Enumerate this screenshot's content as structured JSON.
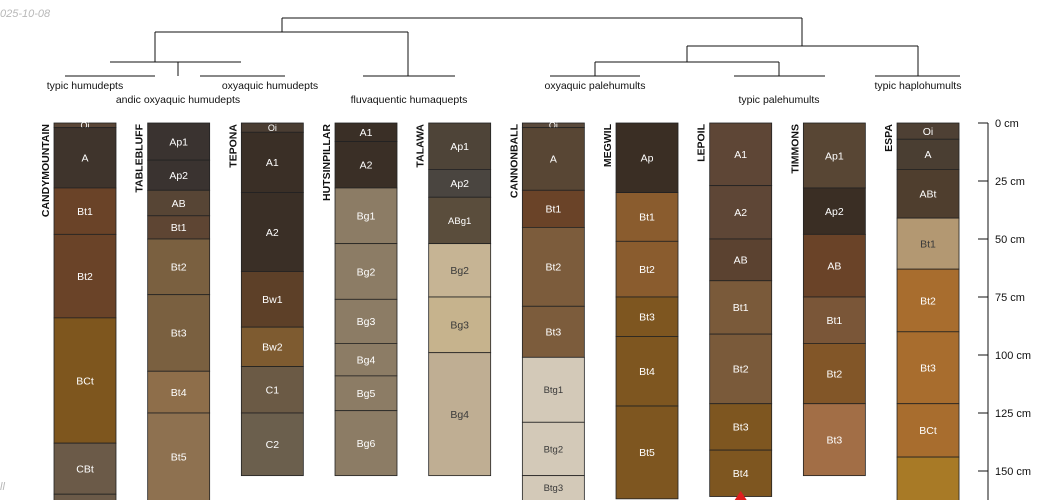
{
  "stamp": "025-10-08",
  "corner_note": "ll",
  "chart_data": {
    "type": "soil-profile-sketch",
    "depth_unit": "cm",
    "depth_ticks": [
      0,
      25,
      50,
      75,
      100,
      125,
      150
    ],
    "depth_tick_labels": [
      "0 cm",
      "25 cm",
      "50 cm",
      "75 cm",
      "100 cm",
      "125 cm",
      "150 cm"
    ],
    "visible_depth_range": [
      0,
      163
    ],
    "taxa": [
      {
        "name": "typic humudepts",
        "profiles": [
          0
        ]
      },
      {
        "name": "andic oxyaquic humudepts",
        "profiles": [
          1
        ]
      },
      {
        "name": "oxyaquic humudepts",
        "profiles": [
          2
        ]
      },
      {
        "name": "fluvaquentic humaquepts",
        "profiles": [
          3,
          4
        ]
      },
      {
        "name": "oxyaquic palehumults",
        "profiles": [
          5,
          6
        ]
      },
      {
        "name": "typic palehumults",
        "profiles": [
          7,
          8
        ]
      },
      {
        "name": "typic haplohumults",
        "profiles": [
          9
        ]
      }
    ],
    "profiles": [
      {
        "name": "CANDYMOUNTAIN",
        "horizons": [
          {
            "name": "Oi",
            "top": 0,
            "bottom": 2,
            "color": "#5a4637"
          },
          {
            "name": "A",
            "top": 2,
            "bottom": 28,
            "color": "#3f342c"
          },
          {
            "name": "Bt1",
            "top": 28,
            "bottom": 48,
            "color": "#6a4328"
          },
          {
            "name": "Bt2",
            "top": 48,
            "bottom": 84,
            "color": "#6a4328"
          },
          {
            "name": "BCt",
            "top": 84,
            "bottom": 138,
            "color": "#7e561e"
          },
          {
            "name": "CBt",
            "top": 138,
            "bottom": 160,
            "color": "#6b5a48"
          },
          {
            "name": "",
            "top": 160,
            "bottom": 175,
            "color": "#6b5a48"
          }
        ]
      },
      {
        "name": "TABLEBLUFF",
        "horizons": [
          {
            "name": "Ap1",
            "top": 0,
            "bottom": 16,
            "color": "#3a3330"
          },
          {
            "name": "Ap2",
            "top": 16,
            "bottom": 29,
            "color": "#3a3330"
          },
          {
            "name": "AB",
            "top": 29,
            "bottom": 40,
            "color": "#574535"
          },
          {
            "name": "Bt1",
            "top": 40,
            "bottom": 50,
            "color": "#5e4533"
          },
          {
            "name": "Bt2",
            "top": 50,
            "bottom": 74,
            "color": "#7a6040"
          },
          {
            "name": "Bt3",
            "top": 74,
            "bottom": 107,
            "color": "#7a6040"
          },
          {
            "name": "Bt4",
            "top": 107,
            "bottom": 125,
            "color": "#8e6e4a"
          },
          {
            "name": "Bt5",
            "top": 125,
            "bottom": 175,
            "color": "#8e7150"
          }
        ]
      },
      {
        "name": "TEPONA",
        "horizons": [
          {
            "name": "Oi",
            "top": 0,
            "bottom": 4,
            "color": "#4a3d32"
          },
          {
            "name": "A1",
            "top": 4,
            "bottom": 30,
            "color": "#3a2f26"
          },
          {
            "name": "A2",
            "top": 30,
            "bottom": 64,
            "color": "#3a2f26"
          },
          {
            "name": "Bw1",
            "top": 64,
            "bottom": 88,
            "color": "#5d4028"
          },
          {
            "name": "Bw2",
            "top": 88,
            "bottom": 105,
            "color": "#7e5b30"
          },
          {
            "name": "C1",
            "top": 105,
            "bottom": 125,
            "color": "#6b5a45"
          },
          {
            "name": "C2",
            "top": 125,
            "bottom": 152,
            "color": "#6b5f4d"
          }
        ]
      },
      {
        "name": "HUTSINPILLAR",
        "horizons": [
          {
            "name": "A1",
            "top": 0,
            "bottom": 8,
            "color": "#3a2f26"
          },
          {
            "name": "A2",
            "top": 8,
            "bottom": 28,
            "color": "#3a2f26"
          },
          {
            "name": "Bg1",
            "top": 28,
            "bottom": 52,
            "color": "#8c7c65"
          },
          {
            "name": "Bg2",
            "top": 52,
            "bottom": 76,
            "color": "#8c7c65"
          },
          {
            "name": "Bg3",
            "top": 76,
            "bottom": 95,
            "color": "#8c7c65"
          },
          {
            "name": "Bg4",
            "top": 95,
            "bottom": 109,
            "color": "#8c7c65"
          },
          {
            "name": "Bg5",
            "top": 109,
            "bottom": 124,
            "color": "#8c7c65"
          },
          {
            "name": "Bg6",
            "top": 124,
            "bottom": 152,
            "color": "#8c7c65"
          }
        ]
      },
      {
        "name": "TALAWA",
        "horizons": [
          {
            "name": "Ap1",
            "top": 0,
            "bottom": 20,
            "color": "#4e4438"
          },
          {
            "name": "Ap2",
            "top": 20,
            "bottom": 32,
            "color": "#4a4540"
          },
          {
            "name": "ABg1",
            "top": 32,
            "bottom": 52,
            "color": "#5a4d3c"
          },
          {
            "name": "Bg2",
            "top": 52,
            "bottom": 75,
            "color": "#c6b494"
          },
          {
            "name": "Bg3",
            "top": 75,
            "bottom": 99,
            "color": "#c6b38d"
          },
          {
            "name": "Bg4",
            "top": 99,
            "bottom": 152,
            "color": "#bfae93"
          }
        ]
      },
      {
        "name": "CANNONBALL",
        "horizons": [
          {
            "name": "Oi",
            "top": 0,
            "bottom": 2,
            "color": "#5a4a3c"
          },
          {
            "name": "A",
            "top": 2,
            "bottom": 29,
            "color": "#584634"
          },
          {
            "name": "Bt1",
            "top": 29,
            "bottom": 45,
            "color": "#6a4328"
          },
          {
            "name": "Bt2",
            "top": 45,
            "bottom": 79,
            "color": "#7c5c3c"
          },
          {
            "name": "Bt3",
            "top": 79,
            "bottom": 101,
            "color": "#7c5c3c"
          },
          {
            "name": "Btg1",
            "top": 101,
            "bottom": 129,
            "color": "#d3c9b8"
          },
          {
            "name": "Btg2",
            "top": 129,
            "bottom": 152,
            "color": "#d3c9b8"
          },
          {
            "name": "Btg3",
            "top": 152,
            "bottom": 175,
            "color": "#d3c9b8"
          }
        ]
      },
      {
        "name": "MEGWIL",
        "horizons": [
          {
            "name": "Ap",
            "top": 0,
            "bottom": 30,
            "color": "#3a2e24"
          },
          {
            "name": "Bt1",
            "top": 30,
            "bottom": 51,
            "color": "#8a5c2e"
          },
          {
            "name": "Bt2",
            "top": 51,
            "bottom": 75,
            "color": "#8a5c2e"
          },
          {
            "name": "Bt3",
            "top": 75,
            "bottom": 92,
            "color": "#7e5620"
          },
          {
            "name": "Bt4",
            "top": 92,
            "bottom": 122,
            "color": "#7e5620"
          },
          {
            "name": "Bt5",
            "top": 122,
            "bottom": 162,
            "color": "#7e5620"
          }
        ]
      },
      {
        "name": "LEPOIL",
        "horizons": [
          {
            "name": "A1",
            "top": 0,
            "bottom": 27,
            "color": "#5e4636"
          },
          {
            "name": "A2",
            "top": 27,
            "bottom": 50,
            "color": "#5e4636"
          },
          {
            "name": "AB",
            "top": 50,
            "bottom": 68,
            "color": "#5b4230"
          },
          {
            "name": "Bt1",
            "top": 68,
            "bottom": 91,
            "color": "#7a5a3a"
          },
          {
            "name": "Bt2",
            "top": 91,
            "bottom": 121,
            "color": "#7a5a3a"
          },
          {
            "name": "Bt3",
            "top": 121,
            "bottom": 141,
            "color": "#7e5620"
          },
          {
            "name": "Bt4",
            "top": 141,
            "bottom": 161,
            "color": "#7e5620"
          }
        ]
      },
      {
        "name": "TIMMONS",
        "horizons": [
          {
            "name": "Ap1",
            "top": 0,
            "bottom": 28,
            "color": "#584634"
          },
          {
            "name": "Ap2",
            "top": 28,
            "bottom": 48,
            "color": "#3a2e24"
          },
          {
            "name": "AB",
            "top": 48,
            "bottom": 75,
            "color": "#6a4328"
          },
          {
            "name": "Bt1",
            "top": 75,
            "bottom": 95,
            "color": "#7a5638"
          },
          {
            "name": "Bt2",
            "top": 95,
            "bottom": 121,
            "color": "#825628"
          },
          {
            "name": "Bt3",
            "top": 121,
            "bottom": 152,
            "color": "#a26e46"
          }
        ]
      },
      {
        "name": "ESPA",
        "horizons": [
          {
            "name": "Oi",
            "top": 0,
            "bottom": 7,
            "color": "#4e4034"
          },
          {
            "name": "A",
            "top": 7,
            "bottom": 20,
            "color": "#4a3e32"
          },
          {
            "name": "ABt",
            "top": 20,
            "bottom": 41,
            "color": "#4f3e2e"
          },
          {
            "name": "Bt1",
            "top": 41,
            "bottom": 63,
            "color": "#b39872"
          },
          {
            "name": "Bt2",
            "top": 63,
            "bottom": 90,
            "color": "#a86d2e"
          },
          {
            "name": "Bt3",
            "top": 90,
            "bottom": 121,
            "color": "#a86d2e"
          },
          {
            "name": "BCt",
            "top": 121,
            "bottom": 144,
            "color": "#a86d2e"
          },
          {
            "name": "",
            "top": 144,
            "bottom": 175,
            "color": "#a87a26"
          }
        ]
      }
    ]
  }
}
